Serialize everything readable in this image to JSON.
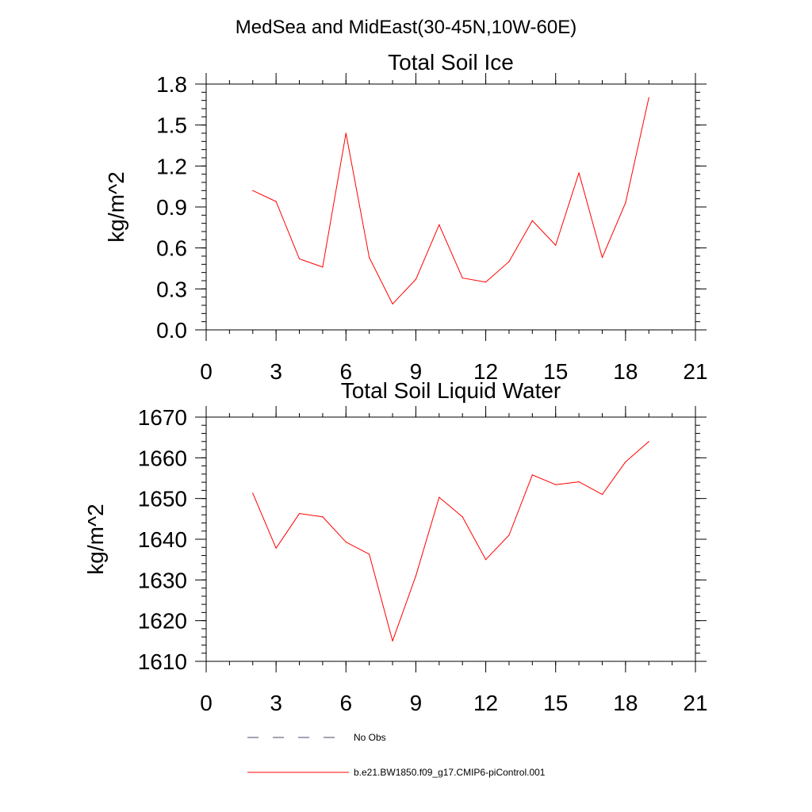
{
  "figure": {
    "main_title": "MedSea and MidEast(30-45N,10W-60E)"
  },
  "chart_data": [
    {
      "type": "line",
      "title": "Total Soil Ice",
      "xlabel": "",
      "ylabel": "kg/m^2",
      "xlim": [
        0,
        21
      ],
      "ylim": [
        0.0,
        1.8
      ],
      "xticks": [
        0,
        3,
        6,
        9,
        12,
        15,
        18,
        21
      ],
      "xtick_labels": [
        "0",
        "3",
        "6",
        "9",
        "12",
        "15",
        "18",
        "21"
      ],
      "yticks": [
        0.0,
        0.3,
        0.6,
        0.9,
        1.2,
        1.5,
        1.8
      ],
      "ytick_labels": [
        "0.0",
        "0.3",
        "0.6",
        "0.9",
        "1.2",
        "1.5",
        "1.8"
      ],
      "y_minor_step": 0.06,
      "x_minor_step": 1,
      "grid": false,
      "series": [
        {
          "name": "b.e21.BW1850.f09_g17.CMIP6-piControl.001",
          "color": "#ff0000",
          "x": [
            2,
            3,
            4,
            5,
            6,
            7,
            8,
            9,
            10,
            11,
            12,
            13,
            14,
            15,
            16,
            17,
            18,
            19
          ],
          "y": [
            1.02,
            0.94,
            0.52,
            0.46,
            1.44,
            0.53,
            0.19,
            0.37,
            0.77,
            0.38,
            0.35,
            0.5,
            0.8,
            0.62,
            1.15,
            0.53,
            0.93,
            1.7
          ]
        }
      ]
    },
    {
      "type": "line",
      "title": "Total Soil Liquid Water",
      "xlabel": "",
      "ylabel": "kg/m^2",
      "xlim": [
        0,
        21
      ],
      "ylim": [
        1610,
        1670
      ],
      "xticks": [
        0,
        3,
        6,
        9,
        12,
        15,
        18,
        21
      ],
      "xtick_labels": [
        "0",
        "3",
        "6",
        "9",
        "12",
        "15",
        "18",
        "21"
      ],
      "yticks": [
        1610,
        1620,
        1630,
        1640,
        1650,
        1660,
        1670
      ],
      "ytick_labels": [
        "1610",
        "1620",
        "1630",
        "1640",
        "1650",
        "1660",
        "1670"
      ],
      "y_minor_step": 2,
      "x_minor_step": 1,
      "grid": false,
      "series": [
        {
          "name": "b.e21.BW1850.f09_g17.CMIP6-piControl.001",
          "color": "#ff0000",
          "x": [
            2,
            3,
            4,
            5,
            6,
            7,
            8,
            9,
            10,
            11,
            12,
            13,
            14,
            15,
            16,
            17,
            18,
            19
          ],
          "y": [
            1651.3,
            1637.8,
            1646.3,
            1645.5,
            1639.3,
            1636.3,
            1615.0,
            1631.0,
            1650.3,
            1645.5,
            1635.0,
            1641.0,
            1655.8,
            1653.4,
            1654.1,
            1651.0,
            1659.0,
            1664.0
          ]
        }
      ]
    }
  ],
  "legend": {
    "placement": "bottom",
    "entries": [
      {
        "label": "No Obs",
        "color": "#4a4a6a",
        "style": "dashed"
      },
      {
        "label": "b.e21.BW1850.f09_g17.CMIP6-piControl.001",
        "color": "#ff0000",
        "style": "solid"
      }
    ]
  }
}
